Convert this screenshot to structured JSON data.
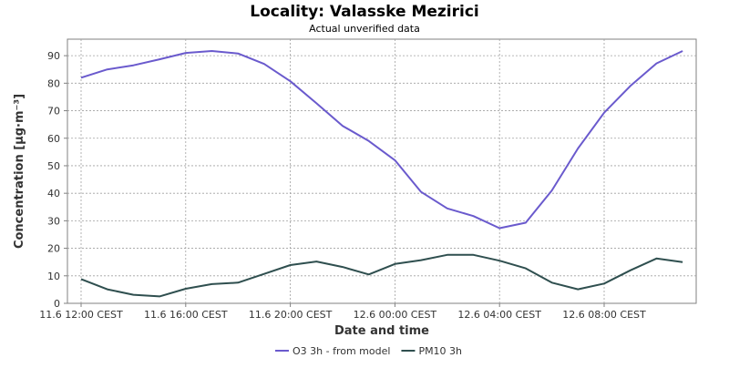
{
  "chart_data": {
    "type": "line",
    "title": "Locality: Valasske Mezirici",
    "subtitle": "Actual unverified data",
    "xlabel": "Date and time",
    "ylabel": "Concentration [µg·m⁻³]",
    "ylim": [
      0,
      96
    ],
    "yticks": [
      0,
      10,
      20,
      30,
      40,
      50,
      60,
      70,
      80,
      90
    ],
    "grid": true,
    "legend_position": "bottom",
    "x": [
      "11.6 12:00",
      "11.6 13:00",
      "11.6 14:00",
      "11.6 15:00",
      "11.6 16:00",
      "11.6 17:00",
      "11.6 18:00",
      "11.6 19:00",
      "11.6 20:00",
      "11.6 21:00",
      "11.6 22:00",
      "11.6 23:00",
      "12.6 00:00",
      "12.6 01:00",
      "12.6 02:00",
      "12.6 03:00",
      "12.6 04:00",
      "12.6 05:00",
      "12.6 06:00",
      "12.6 07:00",
      "12.6 08:00",
      "12.6 09:00",
      "12.6 10:00",
      "12.6 11:00"
    ],
    "xticks": [
      "11.6 12:00 CEST",
      "11.6 16:00 CEST",
      "11.6 20:00 CEST",
      "12.6 00:00 CEST",
      "12.6 04:00 CEST",
      "12.6 08:00 CEST"
    ],
    "series": [
      {
        "name": "O3 3h - from model",
        "color": "#6a5acd",
        "values": [
          82,
          85,
          86.5,
          88.7,
          91,
          91.7,
          90.8,
          87,
          80.7,
          72.7,
          64.5,
          59,
          52,
          40.5,
          34.5,
          31.7,
          27.3,
          29.3,
          41,
          56.3,
          69.3,
          79,
          87.2,
          91.7
        ]
      },
      {
        "name": "PM10 3h",
        "color": "#2f4f4f",
        "values": [
          8.8,
          5.1,
          3.1,
          2.5,
          5.3,
          7,
          7.5,
          10.7,
          13.9,
          15.2,
          13.2,
          10.5,
          14.3,
          15.7,
          17.6,
          17.6,
          15.5,
          12.7,
          7.5,
          5.1,
          7.2,
          12,
          16.3,
          15
        ]
      }
    ]
  }
}
